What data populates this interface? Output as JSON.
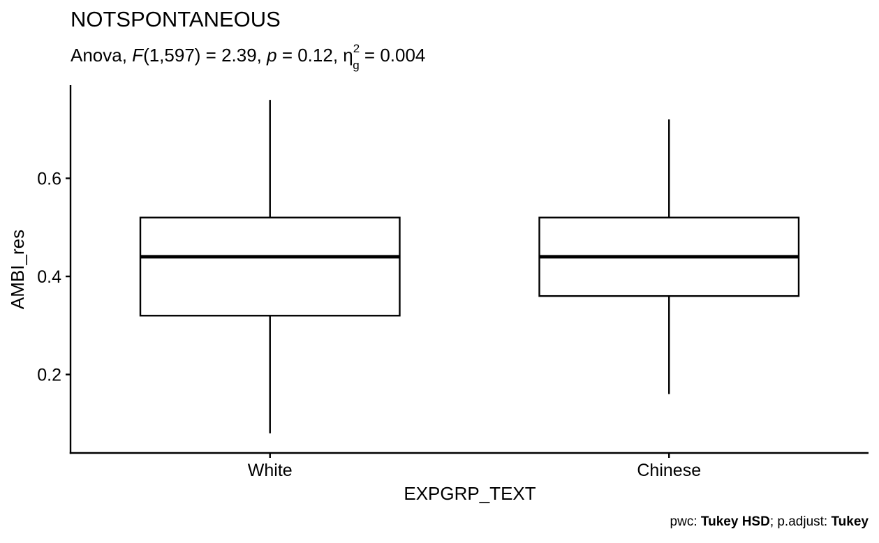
{
  "chart_data": {
    "type": "boxplot",
    "title": "NOTSPONTANEOUS",
    "subtitle": {
      "prefix": "Anova, ",
      "stat_symbol": "F",
      "stat_args": "(1,597) = 2.39, ",
      "p_symbol": "p",
      "p_value": " = 0.12, ",
      "effect_symbol": "η",
      "effect_sup": "2",
      "effect_sub": "g",
      "effect_value": " = 0.004"
    },
    "xlabel": "EXPGRP_TEXT",
    "ylabel": "AMBI_res",
    "categories": [
      "White",
      "Chinese"
    ],
    "boxes": [
      {
        "category": "White",
        "whisker_low": 0.08,
        "q1": 0.32,
        "median": 0.44,
        "q3": 0.52,
        "whisker_high": 0.76
      },
      {
        "category": "Chinese",
        "whisker_low": 0.16,
        "q1": 0.36,
        "median": 0.44,
        "q3": 0.52,
        "whisker_high": 0.72
      }
    ],
    "y_ticks": [
      0.2,
      0.4,
      0.6
    ],
    "y_tick_labels": [
      "0.2",
      "0.4",
      "0.6"
    ],
    "ylim": [
      0.04,
      0.79
    ],
    "grid": false,
    "caption": {
      "prefix": "pwc: ",
      "pwc_method": "Tukey HSD",
      "middle": "; p.adjust: ",
      "adjust_method": "Tukey"
    }
  }
}
